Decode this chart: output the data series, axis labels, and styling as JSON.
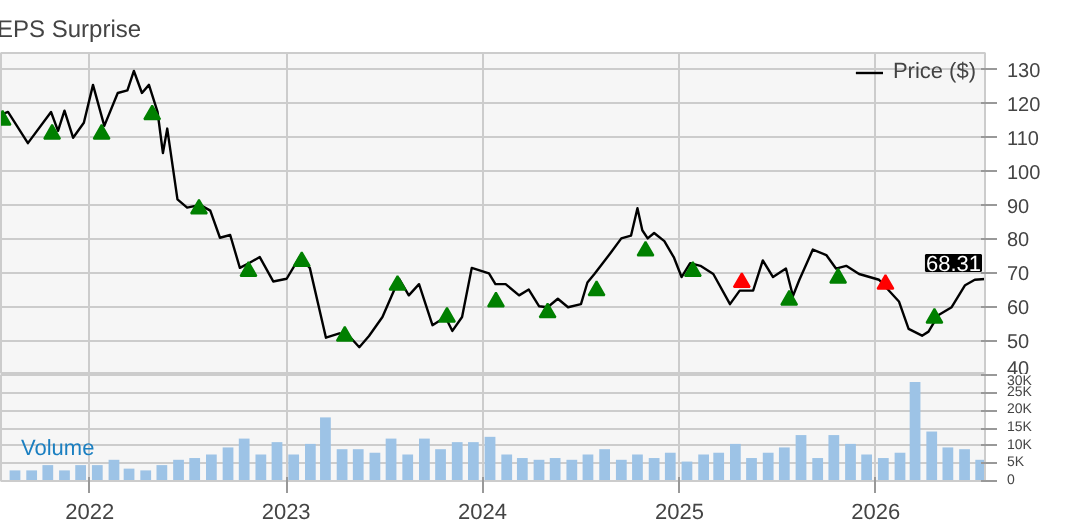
{
  "chart_data": [
    {
      "type": "line",
      "title": "EPS Surprise",
      "xlim": [
        "2021-07-20",
        "2026-07-23"
      ],
      "ylim": [
        40,
        135
      ],
      "xticks": [
        {
          "value": "2022",
          "label": null
        },
        {
          "value": "2023",
          "label": null
        },
        {
          "value": "2024",
          "label": null
        },
        {
          "value": "2025",
          "label": null
        },
        {
          "value": "2026",
          "label": null
        }
      ],
      "yticks": [
        40,
        50,
        60,
        70,
        80,
        90,
        100,
        110,
        120,
        130
      ],
      "grid": true,
      "legend": "top right",
      "tick_labels": "y",
      "annotations": [
        {
          "text": "68.31",
          "x": "2026-07-23",
          "y": 68.31
        }
      ],
      "series": [
        {
          "name": "Price ($)",
          "type": "line",
          "color": "#000000",
          "x": [
            "2021-07-20",
            "2021-08-02",
            "2021-09-08",
            "2021-10-21",
            "2021-11-03",
            "2021-11-15",
            "2021-12-01",
            "2021-12-21",
            "2022-01-07",
            "2022-01-28",
            "2022-02-22",
            "2022-03-12",
            "2022-03-24",
            "2022-04-08",
            "2022-04-21",
            "2022-05-07",
            "2022-05-17",
            "2022-05-25",
            "2022-06-13",
            "2022-07-01",
            "2022-07-25",
            "2022-08-13",
            "2022-08-31",
            "2022-09-19",
            "2022-10-07",
            "2022-10-26",
            "2022-11-13",
            "2022-12-08",
            "2023-01-02",
            "2023-01-26",
            "2023-02-14",
            "2023-03-16",
            "2023-04-10",
            "2023-04-28",
            "2023-05-17",
            "2023-06-04",
            "2023-06-29",
            "2023-07-30",
            "2023-08-17",
            "2023-09-05",
            "2023-09-30",
            "2023-10-24",
            "2023-11-06",
            "2023-11-24",
            "2023-12-12",
            "2024-01-13",
            "2024-01-25",
            "2024-02-13",
            "2024-03-09",
            "2024-03-27",
            "2024-04-15",
            "2024-05-01",
            "2024-05-20",
            "2024-06-08",
            "2024-07-02",
            "2024-07-14",
            "2024-07-27",
            "2024-08-27",
            "2024-09-15",
            "2024-10-03",
            "2024-10-15",
            "2024-10-24",
            "2024-11-03",
            "2024-11-15",
            "2024-12-04",
            "2024-12-22",
            "2025-01-05",
            "2025-01-21",
            "2025-02-09",
            "2025-03-05",
            "2025-04-05",
            "2025-04-23",
            "2025-05-18",
            "2025-06-05",
            "2025-06-24",
            "2025-07-18",
            "2025-07-31",
            "2025-08-12",
            "2025-09-06",
            "2025-10-01",
            "2025-10-19",
            "2025-11-07",
            "2025-12-01",
            "2026-01-07",
            "2026-02-13",
            "2026-03-03",
            "2026-03-28",
            "2026-04-09",
            "2026-04-27",
            "2026-05-22",
            "2026-06-16",
            "2026-07-04",
            "2026-07-23"
          ],
          "values": [
            116.8,
            117.6,
            108.4,
            117.6,
            112,
            118,
            110,
            114.4,
            125.6,
            113.5,
            123.2,
            124,
            129.7,
            123.2,
            125.6,
            117.6,
            105.5,
            112.7,
            91.8,
            89.4,
            90.2,
            88.5,
            80.5,
            81.3,
            71.6,
            73.2,
            74.8,
            67.6,
            68.4,
            74.8,
            71.6,
            51,
            52.3,
            51.5,
            48.2,
            51.5,
            57.1,
            68.4,
            63.5,
            66.8,
            54.7,
            57.1,
            53,
            57.1,
            71.6,
            70,
            66.8,
            66.8,
            63.5,
            65.2,
            60.3,
            60,
            62.5,
            60,
            60.9,
            67.3,
            69.8,
            76.2,
            80.3,
            81.1,
            89.2,
            82.7,
            80.3,
            81.9,
            79.5,
            74.6,
            68.9,
            73,
            72.2,
            69.8,
            60.9,
            64.9,
            64.9,
            73.8,
            68.9,
            71.4,
            63.3,
            68.1,
            77,
            75.4,
            71.4,
            72.2,
            69.8,
            68.1,
            61.7,
            53.6,
            51.6,
            52.8,
            57.6,
            60,
            66.5,
            68.1,
            68.31
          ]
        },
        {
          "type": "scatter",
          "marker": "triangle",
          "color": "#008000",
          "x": [
            "2021-07-23",
            "2021-10-23",
            "2022-01-23",
            "2022-04-27",
            "2022-07-23",
            "2022-10-23",
            "2023-01-30",
            "2023-04-20",
            "2023-07-27",
            "2023-10-27",
            "2024-01-26",
            "2024-05-01",
            "2024-07-31",
            "2024-10-30",
            "2025-01-26",
            "2025-07-24",
            "2025-10-23",
            "2026-04-20"
          ],
          "values": [
            115.2,
            111.1,
            111.1,
            116.8,
            89,
            70.6,
            73.5,
            51.5,
            66.5,
            57.1,
            61.6,
            58.4,
            64.9,
            76.6,
            70.6,
            62.1,
            68.6,
            56.8
          ]
        },
        {
          "type": "scatter",
          "marker": "triangle",
          "color": "#ff0000",
          "x": [
            "2025-04-27",
            "2026-01-19"
          ],
          "values": [
            67.3,
            66.8
          ]
        }
      ]
    },
    {
      "type": "bar",
      "title": "Volume",
      "color": "#9dc3e6",
      "xlim": [
        "2021-07-20",
        "2026-07-23"
      ],
      "ylim": [
        0,
        30000
      ],
      "xticks": [
        "2022",
        "2023",
        "2024",
        "2025",
        "2026"
      ],
      "yticks": [
        0,
        {
          "value": 5000,
          "label": "5K"
        },
        {
          "value": 10000,
          "label": "10K"
        },
        {
          "value": 15000,
          "label": "15K"
        },
        {
          "value": 20000,
          "label": "20K"
        },
        {
          "value": 25000,
          "label": "25K"
        },
        {
          "value": 30000,
          "label": "30K"
        }
      ],
      "grid": true,
      "x": [
        "2021-08-15",
        "2021-09-15",
        "2021-10-15",
        "2021-11-15",
        "2021-12-15",
        "2022-01-15",
        "2022-02-15",
        "2022-03-15",
        "2022-04-15",
        "2022-05-15",
        "2022-06-15",
        "2022-07-15",
        "2022-08-15",
        "2022-09-15",
        "2022-10-15",
        "2022-11-15",
        "2022-12-15",
        "2023-01-15",
        "2023-02-15",
        "2023-03-15",
        "2023-04-15",
        "2023-05-15",
        "2023-06-15",
        "2023-07-15",
        "2023-08-15",
        "2023-09-15",
        "2023-10-15",
        "2023-11-15",
        "2023-12-15",
        "2024-01-15",
        "2024-02-15",
        "2024-03-15",
        "2024-04-15",
        "2024-05-15",
        "2024-06-15",
        "2024-07-15",
        "2024-08-15",
        "2024-09-15",
        "2024-10-15",
        "2024-11-15",
        "2024-12-15",
        "2025-01-15",
        "2025-02-15",
        "2025-03-15",
        "2025-04-15",
        "2025-05-15",
        "2025-06-15",
        "2025-07-15",
        "2025-08-15",
        "2025-09-15",
        "2025-10-15",
        "2025-11-15",
        "2025-12-15",
        "2026-01-15",
        "2026-02-15",
        "2026-03-15",
        "2026-04-15",
        "2026-05-15",
        "2026-06-15",
        "2026-07-15"
      ],
      "values": [
        3000,
        3000,
        4500,
        3000,
        4500,
        4500,
        6000,
        3500,
        3000,
        4500,
        6000,
        6500,
        7500,
        9500,
        12000,
        7500,
        11000,
        7500,
        10500,
        18000,
        9000,
        9000,
        8000,
        12000,
        7500,
        12000,
        9000,
        11000,
        11000,
        12500,
        7500,
        6500,
        6000,
        6500,
        6000,
        7500,
        9000,
        6000,
        7500,
        6500,
        8000,
        5500,
        7500,
        8000,
        10500,
        6500,
        8000,
        9500,
        13000,
        6500,
        13000,
        10500,
        7500,
        6500,
        8000,
        28000,
        14000,
        9500,
        9000,
        6000
      ]
    }
  ]
}
